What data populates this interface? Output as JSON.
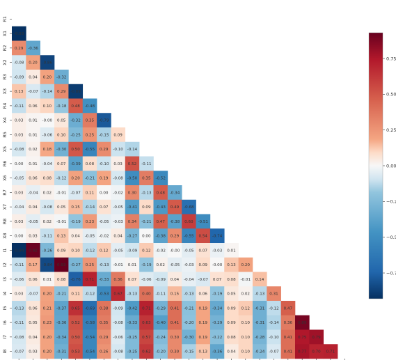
{
  "chart_data": {
    "type": "heatmap",
    "variables": [
      "R1",
      "X1",
      "R2",
      "X2",
      "R3",
      "X3",
      "R4",
      "X4",
      "R5",
      "X5",
      "R6",
      "X6",
      "R7",
      "X7",
      "R8",
      "X8",
      "I1",
      "I2",
      "I3",
      "I4",
      "I5",
      "I6",
      "I7",
      "I8"
    ],
    "lower_triangle": [
      [],
      [
        -0.93
      ],
      [
        0.29,
        -0.36
      ],
      [
        -0.08,
        0.2,
        -0.86
      ],
      [
        -0.09,
        0.04,
        0.2,
        -0.32
      ],
      [
        0.13,
        -0.07,
        -0.14,
        0.29,
        -0.89
      ],
      [
        -0.11,
        0.06,
        0.1,
        -0.18,
        0.48,
        -0.48
      ],
      [
        0.03,
        0.01,
        -0.0,
        0.05,
        -0.32,
        0.35,
        -0.79
      ],
      [
        0.03,
        0.01,
        -0.06,
        0.1,
        -0.25,
        0.25,
        -0.15,
        0.09
      ],
      [
        -0.08,
        0.02,
        0.18,
        -0.3,
        0.5,
        -0.55,
        0.29,
        -0.1,
        -0.14
      ],
      [
        0.0,
        0.01,
        -0.04,
        0.07,
        -0.39,
        0.08,
        -0.1,
        0.03,
        0.52,
        -0.11
      ],
      [
        -0.05,
        0.06,
        0.08,
        -0.12,
        0.2,
        -0.21,
        0.19,
        -0.08,
        -0.5,
        0.35,
        -0.52
      ],
      [
        0.03,
        -0.04,
        0.02,
        -0.01,
        -0.07,
        0.11,
        0.0,
        -0.02,
        0.3,
        -0.13,
        0.48,
        -0.34
      ],
      [
        -0.04,
        0.04,
        -0.08,
        0.05,
        0.15,
        -0.14,
        0.07,
        -0.05,
        -0.41,
        0.09,
        -0.43,
        0.49,
        -0.68
      ],
      [
        0.03,
        -0.05,
        0.02,
        -0.01,
        -0.19,
        0.23,
        -0.05,
        -0.03,
        0.34,
        -0.21,
        0.47,
        -0.38,
        0.6,
        -0.51
      ],
      [
        0.0,
        0.03,
        -0.11,
        0.13,
        0.04,
        -0.05,
        -0.02,
        0.04,
        -0.27,
        0.0,
        -0.38,
        0.29,
        -0.55,
        0.54,
        -0.74
      ],
      [
        -0.94,
        0.92,
        -0.26,
        0.09,
        0.1,
        -0.12,
        0.12,
        -0.05,
        -0.09,
        0.12,
        -0.02,
        -0.0,
        -0.05,
        0.07,
        -0.03,
        0.01
      ],
      [
        -0.11,
        0.17,
        -0.84,
        0.93,
        -0.27,
        0.25,
        -0.13,
        -0.01,
        0.01,
        -0.19,
        0.02,
        -0.05,
        -0.03,
        0.09,
        -0.0,
        0.13,
        0.2
      ],
      [
        -0.06,
        0.06,
        0.01,
        0.08,
        -0.76,
        0.71,
        -0.33,
        0.36,
        0.07,
        -0.06,
        -0.09,
        0.04,
        -0.04,
        -0.07,
        0.07,
        0.08,
        -0.01,
        0.14
      ],
      [
        0.03,
        -0.07,
        0.2,
        -0.21,
        0.11,
        -0.12,
        -0.53,
        0.67,
        -0.13,
        0.4,
        -0.11,
        0.15,
        -0.13,
        0.06,
        -0.19,
        0.05,
        0.02,
        -0.13,
        0.31
      ],
      [
        -0.13,
        0.06,
        0.21,
        -0.37,
        0.65,
        -0.69,
        0.38,
        -0.09,
        -0.42,
        0.71,
        -0.29,
        0.41,
        -0.21,
        0.19,
        -0.34,
        0.09,
        0.12,
        -0.31,
        -0.12,
        0.47
      ],
      [
        -0.11,
        0.05,
        0.23,
        -0.36,
        0.52,
        -0.58,
        0.35,
        -0.08,
        -0.33,
        0.63,
        -0.4,
        0.41,
        -0.2,
        0.19,
        -0.29,
        0.09,
        0.1,
        -0.31,
        -0.14,
        0.36,
        0.89
      ],
      [
        -0.08,
        0.04,
        0.2,
        -0.34,
        0.5,
        -0.54,
        0.29,
        -0.06,
        -0.25,
        0.57,
        -0.24,
        0.3,
        -0.3,
        0.19,
        -0.22,
        0.08,
        0.1,
        -0.28,
        -0.1,
        0.41,
        0.75,
        0.79
      ],
      [
        -0.07,
        0.03,
        0.2,
        -0.31,
        0.53,
        -0.54,
        0.26,
        -0.08,
        -0.25,
        0.62,
        -0.2,
        0.3,
        -0.15,
        0.13,
        -0.36,
        0.04,
        0.1,
        -0.24,
        -0.07,
        0.41,
        0.77,
        0.7,
        0.71
      ]
    ],
    "colorbar": {
      "range": [
        -0.93,
        0.93
      ],
      "ticks": [
        0.75,
        0.5,
        0.25,
        0.0,
        -0.25,
        -0.5,
        -0.75
      ],
      "tick_labels": [
        "0.75",
        "0.50",
        "0.25",
        "0.00",
        "−0.25",
        "−0.50",
        "−0.75"
      ]
    },
    "colorscale": "RdBu_r",
    "colors": {
      "negative_extreme": "#053061",
      "neutral": "#f7f7f7",
      "positive_extreme": "#67001f"
    },
    "title": "",
    "xlabel": "",
    "ylabel": ""
  }
}
